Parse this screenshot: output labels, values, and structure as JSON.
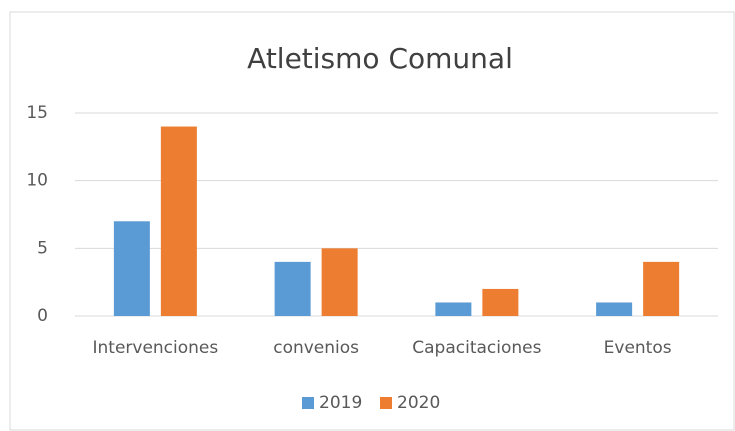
{
  "chart_data": {
    "type": "bar",
    "title": "Atletismo Comunal",
    "categories": [
      "Intervenciones",
      "convenios",
      "Capacitaciones",
      "Eventos"
    ],
    "series": [
      {
        "name": "2019",
        "color": "#5b9bd5",
        "values": [
          7,
          4,
          1,
          1
        ]
      },
      {
        "name": "2020",
        "color": "#ed7d31",
        "values": [
          14,
          5,
          2,
          4
        ]
      }
    ],
    "ylim": [
      0,
      15
    ],
    "yticks": [
      0,
      5,
      10,
      15
    ],
    "grid": true,
    "legend": "bottom"
  }
}
